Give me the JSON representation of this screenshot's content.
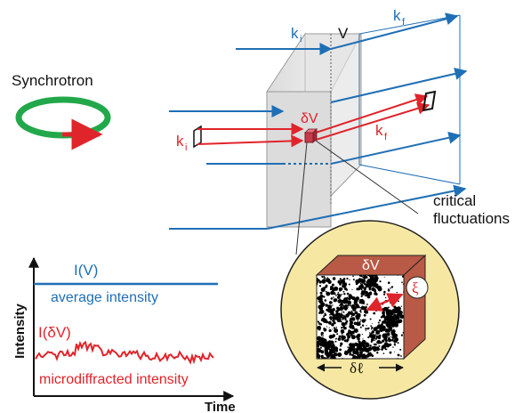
{
  "labels": {
    "synchrotron": "Synchrotron",
    "k_i_top": "k",
    "k_i_top_sub": "i",
    "V": "V",
    "k_f_top": "k",
    "k_f_top_sub": "f",
    "delta_V_beam": "δV",
    "k_i_red": "k",
    "k_i_red_sub": "i",
    "k_f_red": "k",
    "k_f_red_sub": "f",
    "critical": "critical",
    "fluctuations": "fluctuations",
    "delta_V_cube": "δV",
    "xi": "ξ",
    "delta_l": "δℓ"
  },
  "graph": {
    "y_axis": "Intensity",
    "x_axis": "Time",
    "I_V": "I(V)",
    "average": "average intensity",
    "I_dV": "I(δV)",
    "micro": "microdiffracted intensity"
  },
  "colors": {
    "blue": "#1f6fb5",
    "red": "#e0242b",
    "green": "#22a84a",
    "circle_fill": "#f6e8a2",
    "cube_side": "#b85a45"
  }
}
